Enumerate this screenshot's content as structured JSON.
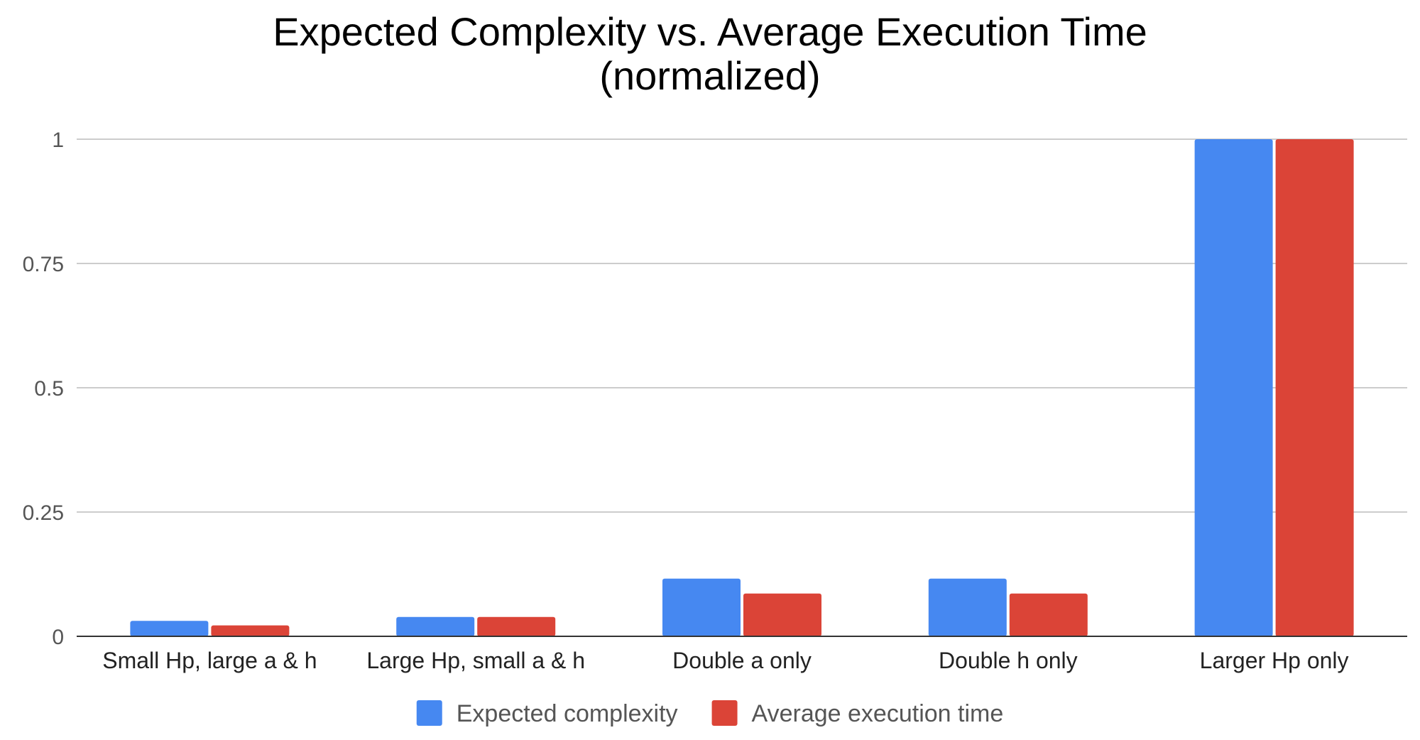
{
  "chart_data": {
    "type": "bar",
    "title": [
      "Expected Complexity vs. Average Execution Time",
      "(normalized)"
    ],
    "xlabel": "",
    "ylabel": "",
    "ylim": [
      0,
      1
    ],
    "yticks": [
      "0",
      "0.25",
      "0.5",
      "0.75",
      "1"
    ],
    "ytick_values": [
      0,
      0.25,
      0.5,
      0.75,
      1
    ],
    "grid": true,
    "legend_position": "bottom",
    "categories": [
      "Small Hp, large a & h",
      "Large Hp, small a & h",
      "Double a only",
      "Double h only",
      "Larger Hp only"
    ],
    "series": [
      {
        "name": "Expected complexity",
        "color": "#4688f1",
        "values": [
          0.031,
          0.039,
          0.116,
          0.116,
          1.0
        ]
      },
      {
        "name": "Average execution time",
        "color": "#db4437",
        "values": [
          0.022,
          0.039,
          0.086,
          0.086,
          1.0
        ]
      }
    ]
  }
}
